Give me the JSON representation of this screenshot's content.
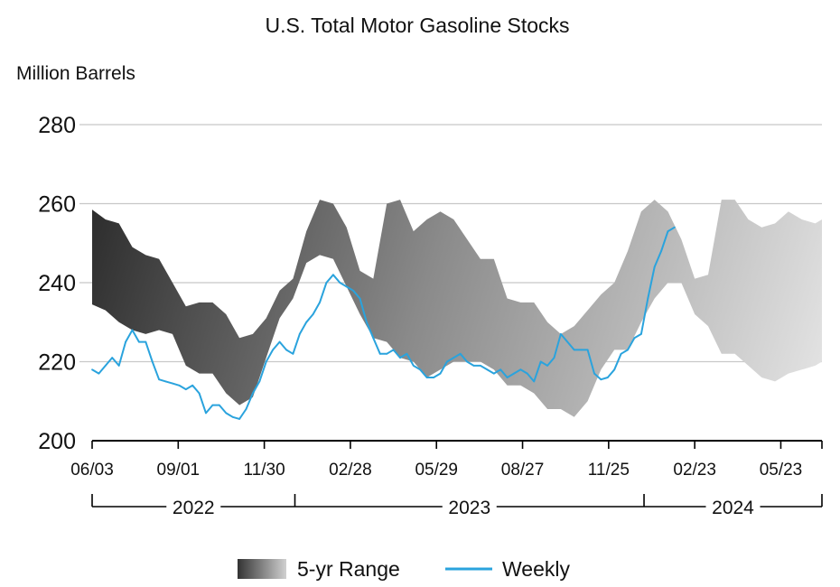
{
  "chart_data": {
    "type": "area",
    "title": "U.S. Total Motor Gasoline Stocks",
    "units_label": "Million Barrels",
    "ylim": [
      200,
      280
    ],
    "yticks": [
      200,
      220,
      240,
      260,
      280
    ],
    "grid": true,
    "legend_position": "bottom-center",
    "legend": [
      {
        "label": "5-yr Range",
        "kind": "band"
      },
      {
        "label": "Weekly",
        "kind": "line",
        "color": "#2aa3dd"
      }
    ],
    "x_tick_labels": [
      "06/03",
      "09/01",
      "11/30",
      "02/28",
      "05/29",
      "08/27",
      "11/25",
      "02/23",
      "05/23"
    ],
    "years": [
      "2022",
      "2023",
      "2024"
    ],
    "x_range": [
      "2022-06-03",
      "2024-07-05"
    ],
    "series": [
      {
        "name": "5-yr Range",
        "kind": "band",
        "x": [
          "2022-06-03",
          "2022-06-17",
          "2022-07-01",
          "2022-07-15",
          "2022-07-29",
          "2022-08-12",
          "2022-08-26",
          "2022-09-09",
          "2022-09-23",
          "2022-10-07",
          "2022-10-21",
          "2022-11-04",
          "2022-11-18",
          "2022-12-02",
          "2022-12-16",
          "2022-12-30",
          "2023-01-13",
          "2023-01-27",
          "2023-02-10",
          "2023-02-24",
          "2023-03-10",
          "2023-03-24",
          "2023-04-07",
          "2023-04-21",
          "2023-05-05",
          "2023-05-19",
          "2023-06-02",
          "2023-06-16",
          "2023-06-30",
          "2023-07-14",
          "2023-07-28",
          "2023-08-11",
          "2023-08-25",
          "2023-09-08",
          "2023-09-22",
          "2023-10-06",
          "2023-10-20",
          "2023-11-03",
          "2023-11-17",
          "2023-12-01",
          "2023-12-15",
          "2023-12-29",
          "2024-01-12",
          "2024-01-26",
          "2024-02-09",
          "2024-02-23",
          "2024-03-08",
          "2024-03-22",
          "2024-04-05",
          "2024-04-19",
          "2024-05-03",
          "2024-05-17",
          "2024-05-31",
          "2024-06-14",
          "2024-06-28",
          "2024-07-05"
        ],
        "high": [
          258.5,
          256,
          255,
          249,
          247,
          246,
          240,
          234,
          235,
          235,
          232,
          226,
          227,
          231,
          238,
          241,
          253,
          261,
          260,
          254,
          243,
          241,
          260,
          261,
          253,
          256,
          258,
          256,
          251,
          246,
          246,
          236,
          235,
          235,
          230,
          227,
          229,
          233,
          237,
          240,
          248,
          258,
          261,
          258,
          251,
          241,
          242,
          261,
          261,
          256,
          254,
          255,
          258,
          256,
          255,
          256
        ],
        "low": [
          234.5,
          233,
          230,
          228,
          227,
          228,
          227,
          219,
          217,
          217,
          212,
          209,
          211,
          221,
          231,
          236,
          245,
          247,
          246,
          239,
          232,
          226,
          225,
          221,
          220,
          216,
          218,
          220,
          220,
          220,
          218,
          214,
          214,
          212,
          208,
          208,
          206,
          210,
          218,
          223,
          223,
          230,
          236,
          240,
          240,
          232,
          229,
          222,
          222,
          219,
          216,
          215,
          217,
          218,
          219,
          220
        ]
      },
      {
        "name": "Weekly",
        "kind": "line",
        "color": "#2aa3dd",
        "x": [
          "2022-06-03",
          "2022-06-10",
          "2022-06-17",
          "2022-06-24",
          "2022-07-01",
          "2022-07-08",
          "2022-07-15",
          "2022-07-22",
          "2022-07-29",
          "2022-08-05",
          "2022-08-12",
          "2022-08-19",
          "2022-08-26",
          "2022-09-02",
          "2022-09-09",
          "2022-09-16",
          "2022-09-23",
          "2022-09-30",
          "2022-10-07",
          "2022-10-14",
          "2022-10-21",
          "2022-10-28",
          "2022-11-04",
          "2022-11-11",
          "2022-11-18",
          "2022-11-25",
          "2022-12-02",
          "2022-12-09",
          "2022-12-16",
          "2022-12-23",
          "2022-12-30",
          "2023-01-06",
          "2023-01-13",
          "2023-01-20",
          "2023-01-27",
          "2023-02-03",
          "2023-02-10",
          "2023-02-17",
          "2023-02-24",
          "2023-03-03",
          "2023-03-10",
          "2023-03-17",
          "2023-03-24",
          "2023-03-31",
          "2023-04-07",
          "2023-04-14",
          "2023-04-21",
          "2023-04-28",
          "2023-05-05",
          "2023-05-12",
          "2023-05-19",
          "2023-05-26",
          "2023-06-02",
          "2023-06-09",
          "2023-06-16",
          "2023-06-23",
          "2023-06-30",
          "2023-07-07",
          "2023-07-14",
          "2023-07-21",
          "2023-07-28",
          "2023-08-04",
          "2023-08-11",
          "2023-08-18",
          "2023-08-25",
          "2023-09-01",
          "2023-09-08",
          "2023-09-15",
          "2023-09-22",
          "2023-09-29",
          "2023-10-06",
          "2023-10-13",
          "2023-10-20",
          "2023-10-27",
          "2023-11-03",
          "2023-11-10",
          "2023-11-17",
          "2023-11-24",
          "2023-12-01",
          "2023-12-08",
          "2023-12-15",
          "2023-12-22",
          "2023-12-29",
          "2024-01-05",
          "2024-01-12",
          "2024-01-19",
          "2024-01-26",
          "2024-02-02"
        ],
        "values": [
          218,
          217,
          219,
          221,
          219,
          225,
          228,
          225,
          225,
          220,
          215.5,
          215,
          214.5,
          214,
          213,
          214,
          212,
          207,
          209,
          209,
          207,
          206,
          205.5,
          208,
          212,
          215,
          220,
          223,
          225,
          223,
          222,
          227,
          230,
          232,
          235,
          240,
          242,
          240,
          239,
          238,
          236,
          230,
          226,
          222,
          222,
          223,
          221,
          222,
          219,
          218,
          216,
          216,
          217,
          220,
          221,
          222,
          220,
          219,
          219,
          218,
          217,
          218,
          216,
          217,
          218,
          217,
          215,
          220,
          219,
          221,
          227,
          225,
          223,
          223,
          223,
          217,
          215.5,
          216,
          218,
          222,
          223,
          226,
          227,
          236,
          244,
          248,
          253,
          254
        ]
      }
    ]
  }
}
